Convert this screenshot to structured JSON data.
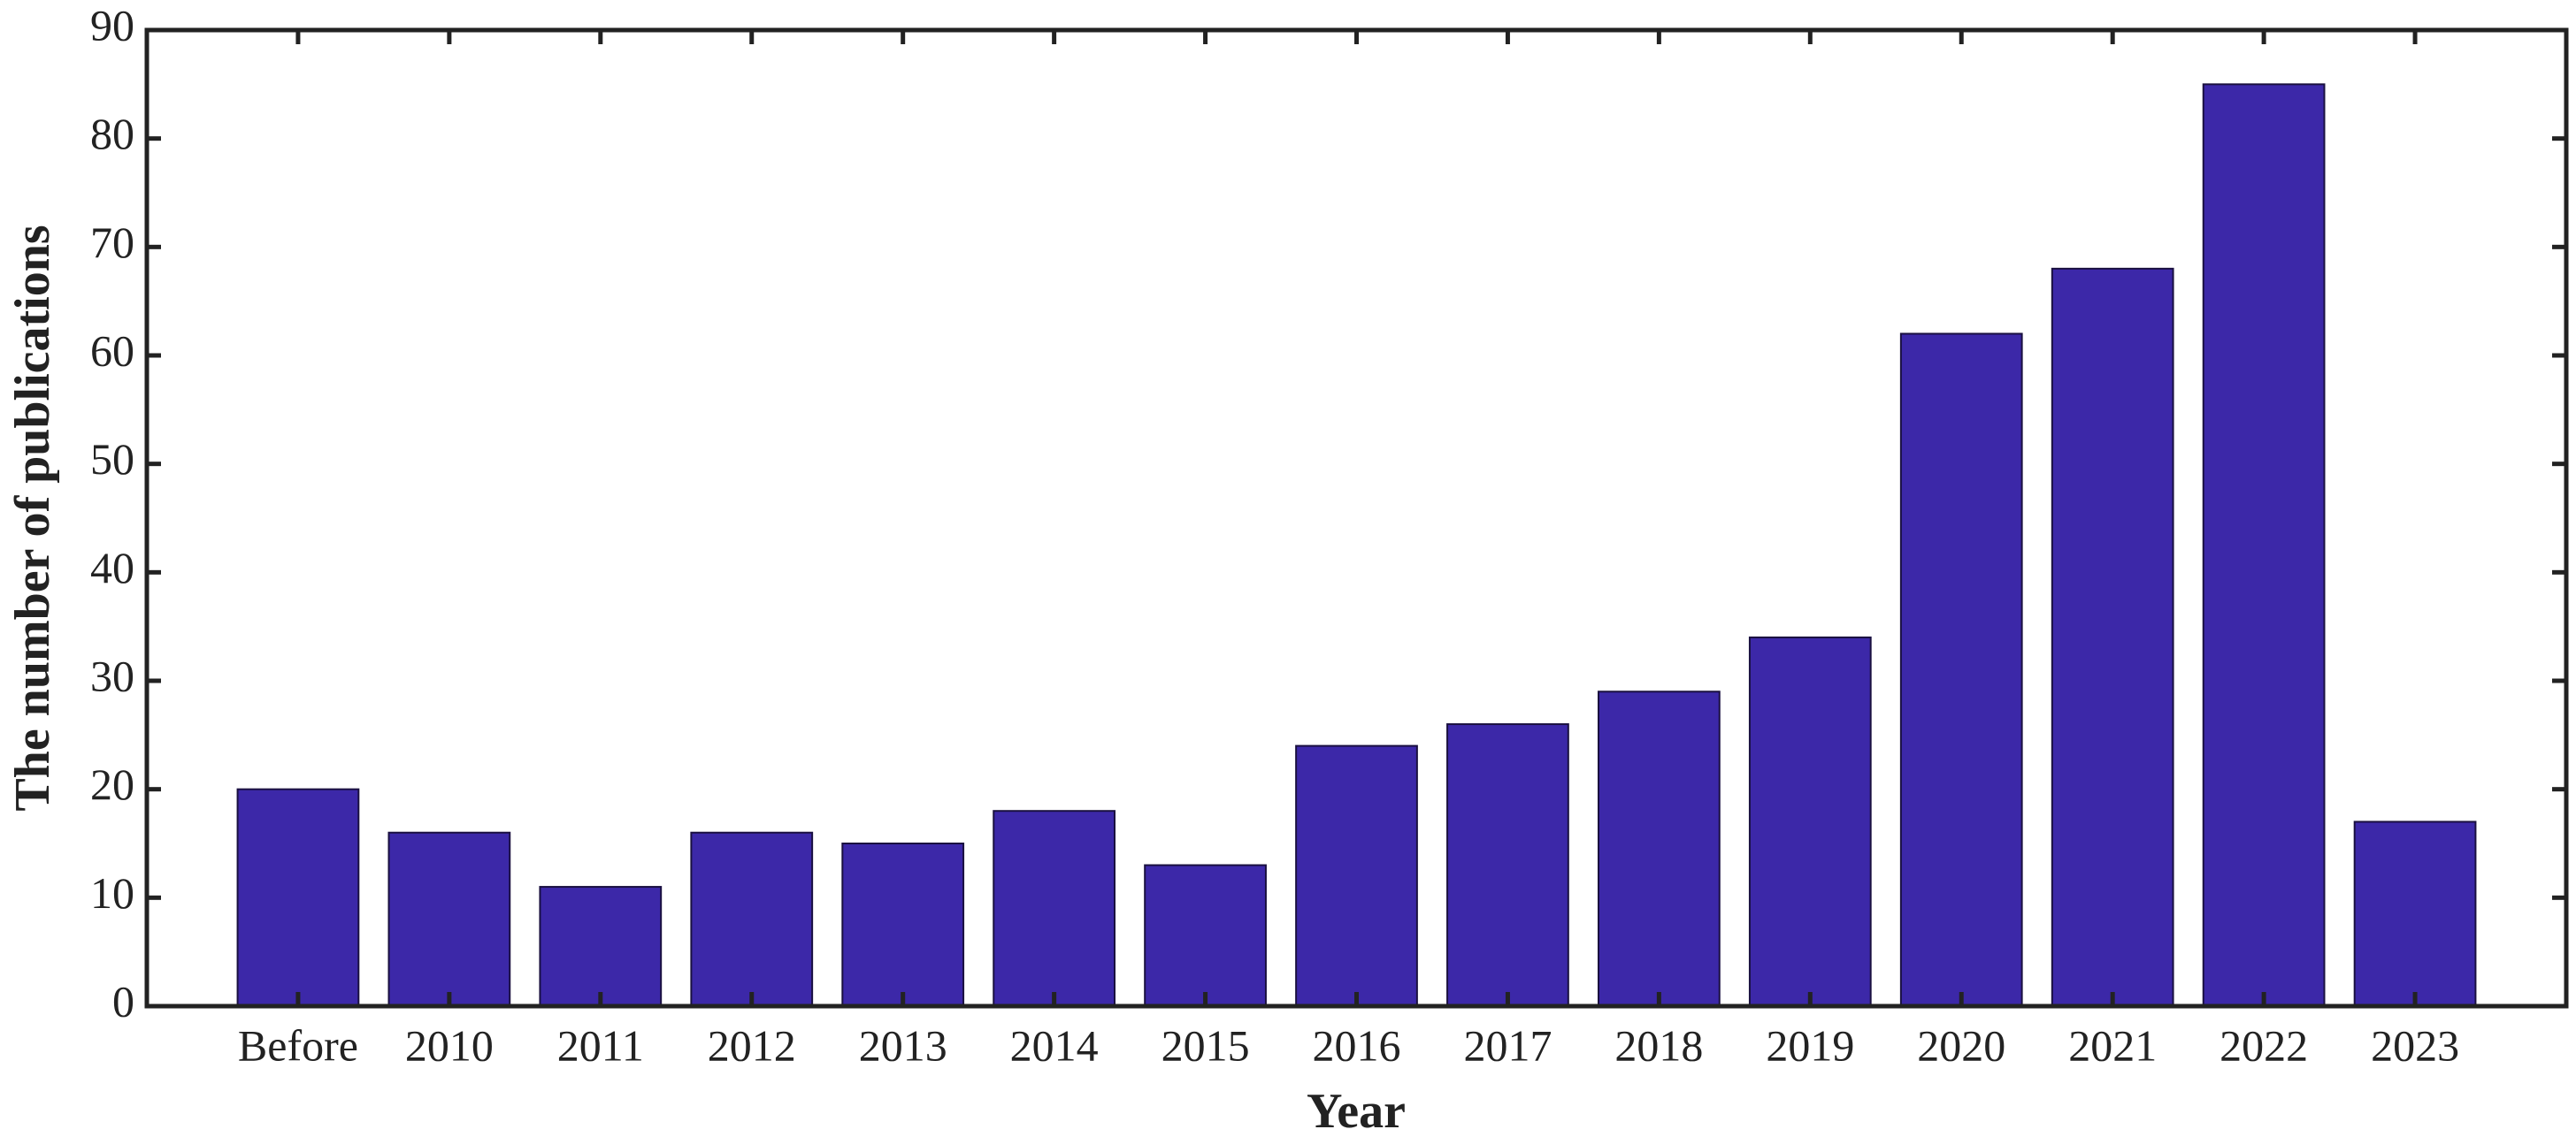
{
  "chart_data": {
    "type": "bar",
    "x_label": "Year",
    "y_label": "The number of publications",
    "categories": [
      "Before",
      "2010",
      "2011",
      "2012",
      "2013",
      "2014",
      "2015",
      "2016",
      "2017",
      "2018",
      "2019",
      "2020",
      "2021",
      "2022",
      "2023"
    ],
    "values": [
      20,
      16,
      11,
      16,
      15,
      18,
      13,
      24,
      26,
      29,
      34,
      62,
      68,
      85,
      17
    ],
    "color": "#3c28a8",
    "ylim": [
      0,
      90
    ],
    "yticks": [
      0,
      10,
      20,
      30,
      40,
      50,
      60,
      70,
      80,
      90
    ],
    "grid": false
  }
}
